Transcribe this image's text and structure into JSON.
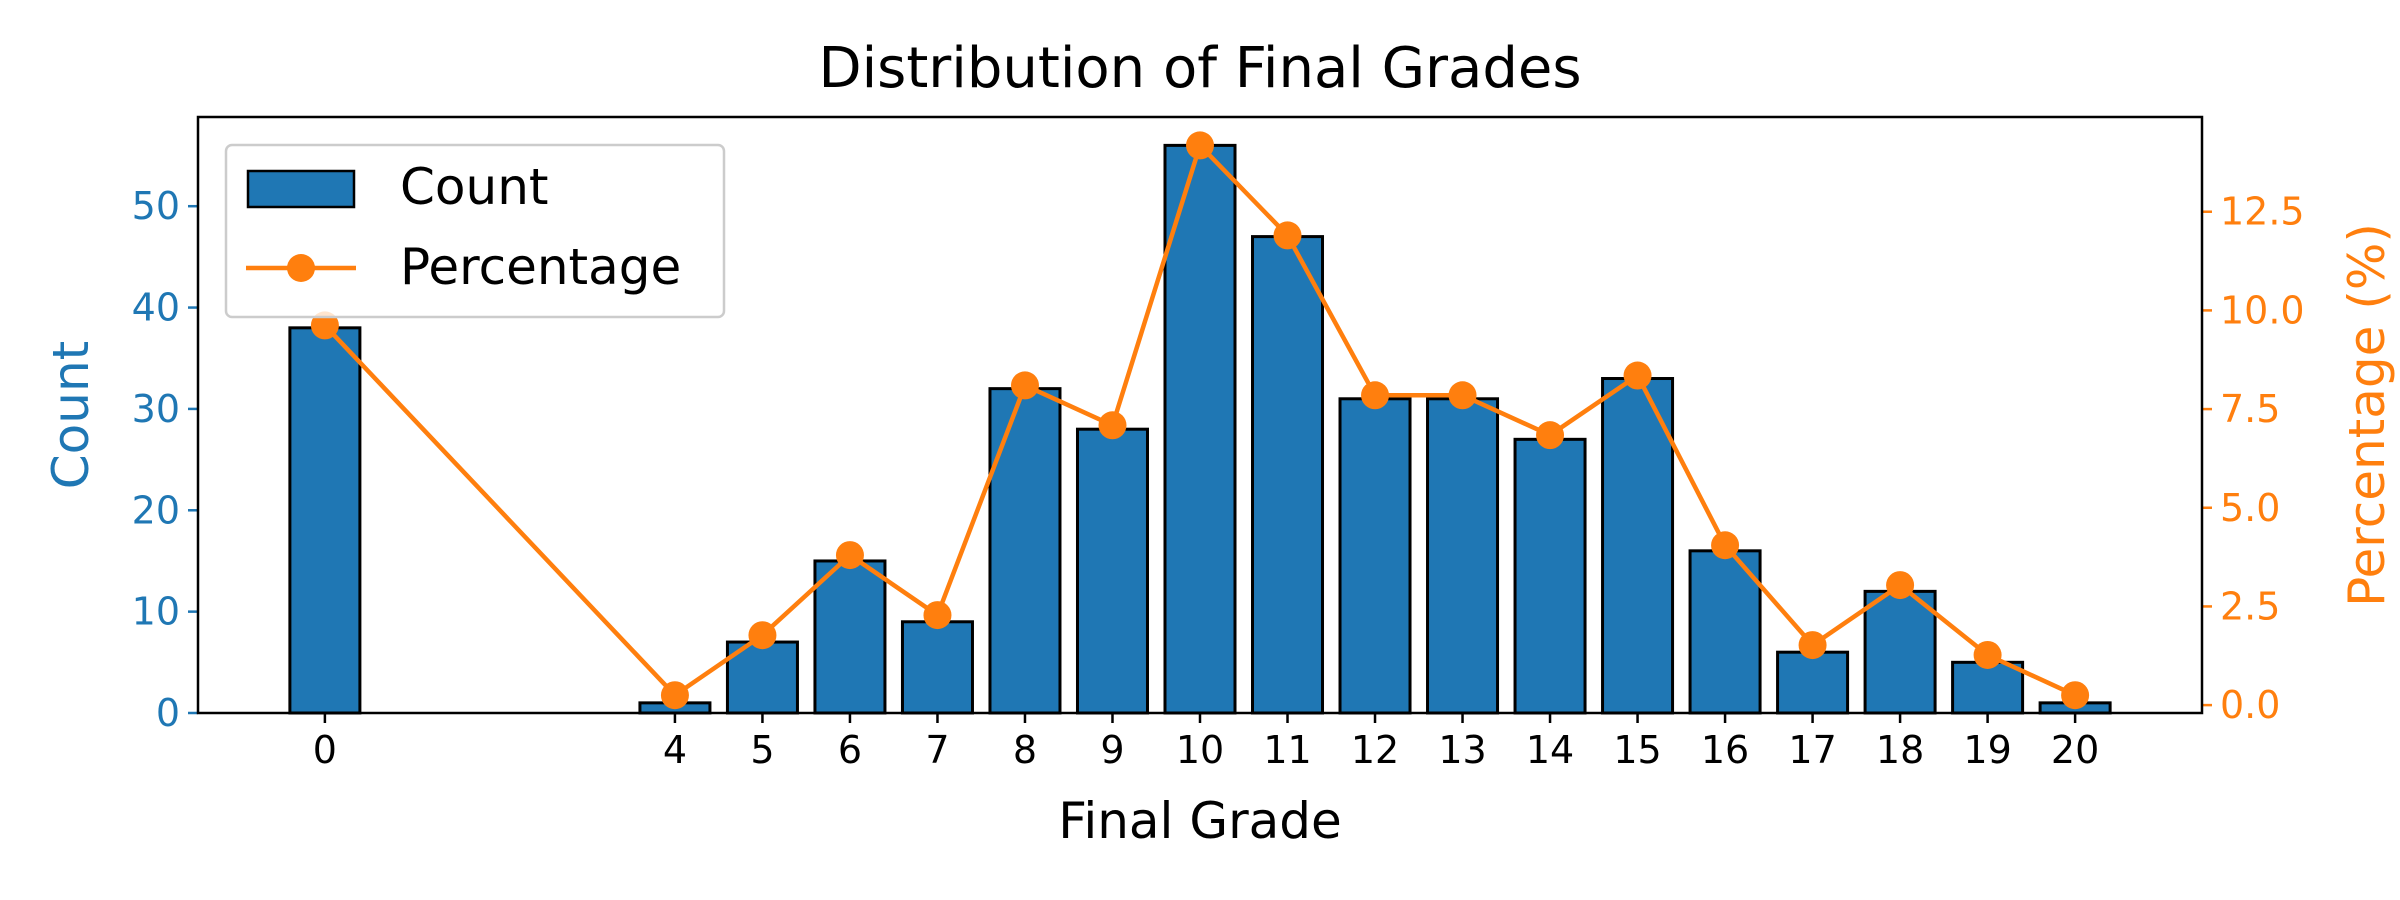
{
  "chart_data": {
    "type": "bar",
    "title": "Distribution of Final Grades",
    "xlabel": "Final Grade",
    "ylabel": "Count",
    "ylabel_right": "Percentage (%)",
    "x": [
      0,
      4,
      5,
      6,
      7,
      8,
      9,
      10,
      11,
      12,
      13,
      14,
      15,
      16,
      17,
      18,
      19,
      20
    ],
    "xlim": [
      -1.45,
      21.45
    ],
    "ylim": [
      0,
      58.8
    ],
    "ylim_right": [
      -0.2,
      14.9
    ],
    "yticks": [
      0,
      10,
      20,
      30,
      40,
      50
    ],
    "yticks_right": [
      0.0,
      2.5,
      5.0,
      7.5,
      10.0,
      12.5
    ],
    "yticks_right_labels": [
      "0.0",
      "2.5",
      "5.0",
      "7.5",
      "10.0",
      "12.5"
    ],
    "series": [
      {
        "name": "Count",
        "kind": "bar",
        "axis": "left",
        "color": "#1f77b4",
        "values": [
          38,
          1,
          7,
          15,
          9,
          32,
          28,
          56,
          47,
          31,
          31,
          27,
          33,
          16,
          6,
          12,
          5,
          1
        ]
      },
      {
        "name": "Percentage",
        "kind": "line",
        "axis": "right",
        "color": "#ff7f0e",
        "values": [
          9.62,
          0.25,
          1.77,
          3.8,
          2.28,
          8.1,
          7.09,
          14.18,
          11.9,
          7.85,
          7.85,
          6.84,
          8.35,
          4.05,
          1.52,
          3.04,
          1.27,
          0.25
        ]
      }
    ],
    "legend_position": "upper-left",
    "grid": false
  }
}
